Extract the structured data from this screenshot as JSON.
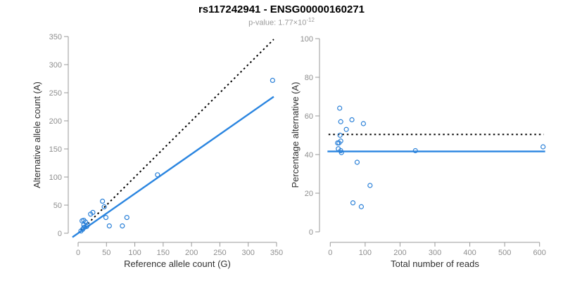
{
  "header": {
    "title": "rs117242941 - ENSG00000160271",
    "pvalue_prefix": "p-value: 1.77×10",
    "pvalue_exponent": "-12"
  },
  "colors": {
    "point_blue": "#2a80d8",
    "line_blue": "#2a85e0",
    "dotted_black": "#000000",
    "axis_gray": "#999999",
    "tick_label_gray": "#8e8e8e",
    "axis_title_color": "#303030",
    "title_color": "#000000",
    "subtitle_gray": "#9b9b9b",
    "background": "#ffffff"
  },
  "chart_data": [
    {
      "id": "left",
      "type": "scatter",
      "xlabel": "Reference allele count (G)",
      "ylabel": "Alternative allele count (A)",
      "xlim": [
        0,
        350
      ],
      "ylim": [
        0,
        350
      ],
      "xticks": [
        0,
        50,
        100,
        150,
        200,
        250,
        300,
        350
      ],
      "yticks": [
        0,
        50,
        100,
        150,
        200,
        250,
        300,
        350
      ],
      "grid": false,
      "legend": "none",
      "points": [
        [
          5,
          4
        ],
        [
          8,
          7
        ],
        [
          10,
          10
        ],
        [
          12,
          11
        ],
        [
          10,
          15
        ],
        [
          15,
          12
        ],
        [
          17,
          15
        ],
        [
          13,
          20
        ],
        [
          7,
          22
        ],
        [
          10,
          23
        ],
        [
          22,
          34
        ],
        [
          26,
          37
        ],
        [
          43,
          57
        ],
        [
          46,
          47
        ],
        [
          49,
          28
        ],
        [
          55,
          13
        ],
        [
          78,
          13
        ],
        [
          86,
          28
        ],
        [
          140,
          104
        ],
        [
          343,
          272
        ]
      ],
      "lines": [
        {
          "name": "identity-line",
          "style": "dotted",
          "color": "#000000",
          "width": 2,
          "from": [
            0,
            0
          ],
          "to": [
            345,
            345
          ]
        },
        {
          "name": "regression-line",
          "style": "solid",
          "color": "#2a85e0",
          "width": 2.4,
          "from": [
            -10,
            -7
          ],
          "to": [
            345,
            243
          ]
        }
      ]
    },
    {
      "id": "right",
      "type": "scatter",
      "xlabel": "Total number of reads",
      "ylabel": "Percentage alternative (A)",
      "xlim": [
        0,
        600
      ],
      "ylim": [
        0,
        100
      ],
      "xticks": [
        0,
        100,
        200,
        300,
        400,
        500,
        600
      ],
      "yticks": [
        0,
        20,
        40,
        60,
        80,
        100
      ],
      "grid": false,
      "legend": "none",
      "points": [
        [
          27,
          64
        ],
        [
          30,
          57
        ],
        [
          62,
          58
        ],
        [
          95,
          56
        ],
        [
          46,
          53
        ],
        [
          28,
          50
        ],
        [
          21,
          46
        ],
        [
          25,
          46
        ],
        [
          30,
          47
        ],
        [
          23,
          43
        ],
        [
          30,
          42
        ],
        [
          32,
          41
        ],
        [
          77,
          36
        ],
        [
          114,
          24
        ],
        [
          65,
          15
        ],
        [
          89,
          13
        ],
        [
          244,
          42
        ],
        [
          610,
          44
        ]
      ],
      "lines": [
        {
          "name": "expected-50pct-line",
          "style": "dotted",
          "color": "#000000",
          "width": 2,
          "from": [
            -5,
            50.4
          ],
          "to": [
            612,
            50.4
          ]
        },
        {
          "name": "mean-percentage-line",
          "style": "solid",
          "color": "#2a85e0",
          "width": 2.4,
          "from": [
            -8,
            41.6
          ],
          "to": [
            616,
            41.6
          ]
        }
      ]
    }
  ]
}
